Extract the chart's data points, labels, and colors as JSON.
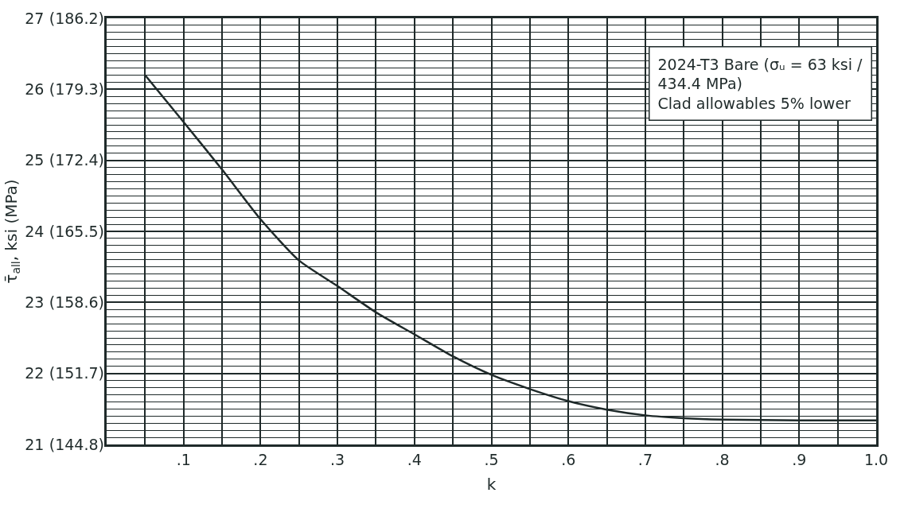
{
  "chart_data": {
    "type": "line",
    "xlabel": "k",
    "ylabel": "τ̄$_{all}$, ksi (MPa)",
    "x": [
      0.05,
      0.1,
      0.15,
      0.2,
      0.25,
      0.3,
      0.35,
      0.4,
      0.45,
      0.5,
      0.55,
      0.6,
      0.65,
      0.7,
      0.75,
      0.8,
      0.9,
      1.0
    ],
    "series": [
      {
        "color": "#1f2a2a",
        "values": [
          26.2,
          25.54,
          24.87,
          24.17,
          23.59,
          23.23,
          22.86,
          22.55,
          22.24,
          21.98,
          21.78,
          21.61,
          21.49,
          21.41,
          21.37,
          21.35,
          21.34,
          21.34
        ]
      }
    ],
    "xlim": [
      0,
      1.0
    ],
    "xticks": [
      {
        "value": 0.1,
        "label": ".1"
      },
      {
        "value": 0.2,
        "label": ".2"
      },
      {
        "value": 0.3,
        "label": ".3"
      },
      {
        "value": 0.4,
        "label": ".4"
      },
      {
        "value": 0.5,
        "label": ".5"
      },
      {
        "value": 0.6,
        "label": ".6"
      },
      {
        "value": 0.7,
        "label": ".7"
      },
      {
        "value": 0.8,
        "label": ".8"
      },
      {
        "value": 0.9,
        "label": ".9"
      },
      {
        "value": 1.0,
        "label": "1.0"
      }
    ],
    "ylim": [
      21,
      27
    ],
    "yticks": [
      21,
      22,
      23,
      24,
      25,
      26,
      27
    ],
    "y2lim": [
      144.8,
      186.2
    ],
    "y2ticks": [
      {
        "value": 144.8,
        "label": "(144.8)"
      },
      {
        "value": 151.7,
        "label": "(151.7)"
      },
      {
        "value": 158.6,
        "label": "(158.6)"
      },
      {
        "value": 165.5,
        "label": "(165.5)"
      },
      {
        "value": 172.4,
        "label": "(172.4)"
      },
      {
        "value": 179.3,
        "label": "(179.3)"
      },
      {
        "value": 186.2,
        "label": "(186.2)"
      }
    ],
    "annotations": [
      "2024-T3 Bare (σᵤ = 63 ksi / 434.4 MPa)",
      "Clad allowables 5% lower"
    ],
    "grid": true,
    "line_style": "solid",
    "marker": "none"
  }
}
